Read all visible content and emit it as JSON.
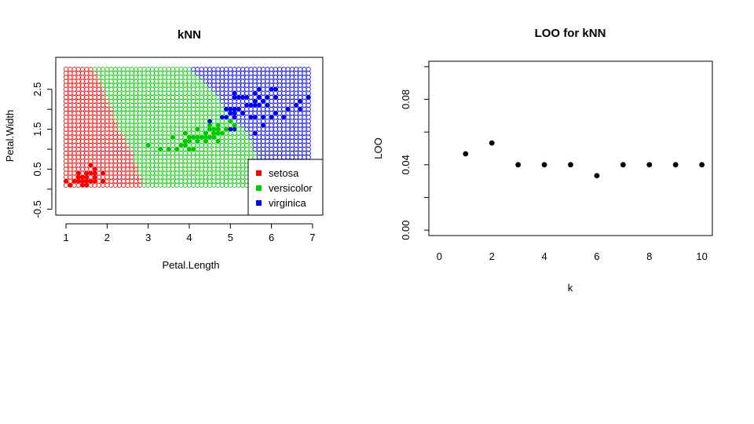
{
  "chart_data": [
    {
      "type": "scatter",
      "title": "kNN",
      "xlabel": "Petal.Length",
      "ylabel": "Petal.Width",
      "xlim": [
        0.75,
        7.25
      ],
      "ylim": [
        -0.65,
        3.3
      ],
      "x_ticks": [
        1,
        2,
        3,
        4,
        5,
        6,
        7
      ],
      "y_ticks": [
        -0.5,
        0.5,
        1.5,
        2.5
      ],
      "x_tick_labels": [
        "1",
        "2",
        "3",
        "4",
        "5",
        "6",
        "7"
      ],
      "y_tick_labels": [
        "-0.5",
        "0.5",
        "1.5",
        "2.5"
      ],
      "legend": {
        "position": "bottom-right",
        "entries": [
          {
            "label": "setosa",
            "color": "#ff0000"
          },
          {
            "label": "versicolor",
            "color": "#00cd00"
          },
          {
            "label": "virginica",
            "color": "#0000ff"
          }
        ]
      },
      "decision_grid": {
        "x_range": [
          1.0,
          6.9
        ],
        "y_range": [
          0.1,
          3.0
        ],
        "step": 0.1,
        "boundary_setosa_versicolor": [
          [
            0.1,
            2.9
          ],
          [
            1.0,
            2.6
          ],
          [
            1.5,
            2.3
          ],
          [
            2.3,
            2.0
          ],
          [
            3.0,
            1.7
          ]
        ],
        "boundary_versicolor_virginica": [
          [
            0.1,
            5.9
          ],
          [
            1.0,
            5.6
          ],
          [
            1.5,
            5.4
          ],
          [
            1.8,
            5.0
          ],
          [
            2.2,
            4.8
          ],
          [
            2.6,
            4.5
          ],
          [
            3.0,
            4.1
          ]
        ]
      },
      "series": [
        {
          "name": "setosa",
          "color": "#ff0000",
          "points": [
            [
              1.4,
              0.2
            ],
            [
              1.4,
              0.2
            ],
            [
              1.3,
              0.2
            ],
            [
              1.5,
              0.2
            ],
            [
              1.4,
              0.2
            ],
            [
              1.7,
              0.4
            ],
            [
              1.4,
              0.3
            ],
            [
              1.5,
              0.2
            ],
            [
              1.4,
              0.2
            ],
            [
              1.5,
              0.1
            ],
            [
              1.5,
              0.2
            ],
            [
              1.6,
              0.2
            ],
            [
              1.4,
              0.1
            ],
            [
              1.1,
              0.1
            ],
            [
              1.2,
              0.2
            ],
            [
              1.5,
              0.4
            ],
            [
              1.3,
              0.4
            ],
            [
              1.4,
              0.3
            ],
            [
              1.7,
              0.3
            ],
            [
              1.5,
              0.3
            ],
            [
              1.7,
              0.2
            ],
            [
              1.5,
              0.4
            ],
            [
              1.0,
              0.2
            ],
            [
              1.7,
              0.5
            ],
            [
              1.9,
              0.2
            ],
            [
              1.6,
              0.2
            ],
            [
              1.6,
              0.4
            ],
            [
              1.5,
              0.2
            ],
            [
              1.4,
              0.2
            ],
            [
              1.6,
              0.2
            ],
            [
              1.6,
              0.2
            ],
            [
              1.5,
              0.4
            ],
            [
              1.5,
              0.1
            ],
            [
              1.4,
              0.2
            ],
            [
              1.5,
              0.2
            ],
            [
              1.2,
              0.2
            ],
            [
              1.3,
              0.2
            ],
            [
              1.4,
              0.1
            ],
            [
              1.3,
              0.2
            ],
            [
              1.5,
              0.2
            ],
            [
              1.3,
              0.3
            ],
            [
              1.3,
              0.3
            ],
            [
              1.3,
              0.2
            ],
            [
              1.6,
              0.6
            ],
            [
              1.9,
              0.4
            ],
            [
              1.4,
              0.3
            ],
            [
              1.6,
              0.2
            ],
            [
              1.4,
              0.2
            ],
            [
              1.5,
              0.2
            ],
            [
              1.4,
              0.2
            ]
          ]
        },
        {
          "name": "versicolor",
          "color": "#00cd00",
          "points": [
            [
              4.7,
              1.4
            ],
            [
              4.5,
              1.5
            ],
            [
              4.9,
              1.5
            ],
            [
              4.0,
              1.3
            ],
            [
              4.6,
              1.5
            ],
            [
              4.5,
              1.3
            ],
            [
              4.7,
              1.6
            ],
            [
              3.3,
              1.0
            ],
            [
              4.6,
              1.3
            ],
            [
              3.9,
              1.4
            ],
            [
              3.5,
              1.0
            ],
            [
              4.2,
              1.5
            ],
            [
              4.0,
              1.0
            ],
            [
              4.7,
              1.4
            ],
            [
              3.6,
              1.3
            ],
            [
              4.4,
              1.4
            ],
            [
              4.5,
              1.5
            ],
            [
              4.1,
              1.0
            ],
            [
              4.5,
              1.5
            ],
            [
              3.9,
              1.1
            ],
            [
              4.8,
              1.8
            ],
            [
              4.0,
              1.3
            ],
            [
              4.9,
              1.5
            ],
            [
              4.7,
              1.2
            ],
            [
              4.3,
              1.3
            ],
            [
              4.4,
              1.4
            ],
            [
              4.8,
              1.4
            ],
            [
              5.0,
              1.7
            ],
            [
              4.5,
              1.5
            ],
            [
              3.5,
              1.0
            ],
            [
              3.8,
              1.1
            ],
            [
              3.7,
              1.0
            ],
            [
              3.9,
              1.2
            ],
            [
              5.1,
              1.6
            ],
            [
              4.5,
              1.5
            ],
            [
              4.5,
              1.6
            ],
            [
              4.7,
              1.5
            ],
            [
              4.4,
              1.3
            ],
            [
              4.1,
              1.3
            ],
            [
              4.0,
              1.3
            ],
            [
              4.4,
              1.2
            ],
            [
              4.6,
              1.4
            ],
            [
              4.0,
              1.2
            ],
            [
              3.3,
              1.0
            ],
            [
              4.2,
              1.3
            ],
            [
              4.2,
              1.2
            ],
            [
              4.2,
              1.3
            ],
            [
              4.3,
              1.3
            ],
            [
              3.0,
              1.1
            ],
            [
              4.1,
              1.3
            ]
          ]
        },
        {
          "name": "virginica",
          "color": "#0000ff",
          "points": [
            [
              6.0,
              2.5
            ],
            [
              5.1,
              1.9
            ],
            [
              5.9,
              2.1
            ],
            [
              5.6,
              1.8
            ],
            [
              5.8,
              2.2
            ],
            [
              6.6,
              2.1
            ],
            [
              4.5,
              1.7
            ],
            [
              6.3,
              1.8
            ],
            [
              5.8,
              1.8
            ],
            [
              6.1,
              2.5
            ],
            [
              5.1,
              2.0
            ],
            [
              5.3,
              1.9
            ],
            [
              5.5,
              2.1
            ],
            [
              5.0,
              2.0
            ],
            [
              5.1,
              2.4
            ],
            [
              5.3,
              2.3
            ],
            [
              5.5,
              1.8
            ],
            [
              6.7,
              2.2
            ],
            [
              6.9,
              2.3
            ],
            [
              5.0,
              1.5
            ],
            [
              5.7,
              2.3
            ],
            [
              4.9,
              2.0
            ],
            [
              6.7,
              2.0
            ],
            [
              4.9,
              1.8
            ],
            [
              5.7,
              2.1
            ],
            [
              6.0,
              1.8
            ],
            [
              4.8,
              1.8
            ],
            [
              4.9,
              1.8
            ],
            [
              5.6,
              2.1
            ],
            [
              5.8,
              1.6
            ],
            [
              6.1,
              1.9
            ],
            [
              6.4,
              2.0
            ],
            [
              5.6,
              2.2
            ],
            [
              5.1,
              1.5
            ],
            [
              5.6,
              1.4
            ],
            [
              6.1,
              2.3
            ],
            [
              5.6,
              2.4
            ],
            [
              5.5,
              1.8
            ],
            [
              4.8,
              1.8
            ],
            [
              5.4,
              2.1
            ],
            [
              5.6,
              2.4
            ],
            [
              5.1,
              2.3
            ],
            [
              5.9,
              2.3
            ],
            [
              5.7,
              2.5
            ],
            [
              5.2,
              2.3
            ],
            [
              5.0,
              1.9
            ],
            [
              5.2,
              2.0
            ],
            [
              5.4,
              2.3
            ],
            [
              5.1,
              1.8
            ]
          ]
        }
      ]
    },
    {
      "type": "scatter",
      "title": "LOO for kNN",
      "xlabel": "k",
      "ylabel": "LOO",
      "xlim": [
        -0.4,
        10.4
      ],
      "ylim": [
        -0.0033,
        0.1033
      ],
      "x_ticks": [
        0,
        2,
        4,
        6,
        8,
        10
      ],
      "y_ticks": [
        0.0,
        0.04,
        0.08
      ],
      "x_tick_labels": [
        "0",
        "2",
        "4",
        "6",
        "8",
        "10"
      ],
      "y_tick_labels": [
        "0.00",
        "0.04",
        "0.08"
      ],
      "y_minor_ticks": [
        0.02,
        0.06,
        0.1
      ],
      "x": [
        1,
        2,
        3,
        4,
        5,
        6,
        7,
        8,
        9,
        10
      ],
      "y": [
        0.0467,
        0.0533,
        0.04,
        0.04,
        0.04,
        0.0333,
        0.04,
        0.04,
        0.04,
        0.04
      ]
    }
  ]
}
